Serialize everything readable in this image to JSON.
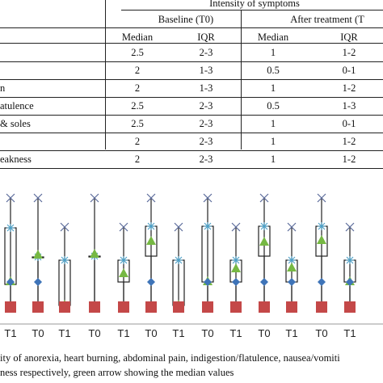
{
  "table": {
    "title": "Intensity of symptoms",
    "groups": [
      "Baseline (T0)",
      "After treatment (T"
    ],
    "subheaders": [
      "Median",
      "IQR",
      "Median",
      "IQR"
    ],
    "rows": [
      {
        "label": "",
        "values": [
          "2.5",
          "2-3",
          "1",
          "1-2"
        ]
      },
      {
        "label": "",
        "values": [
          "2",
          "1-3",
          "0.5",
          "0-1"
        ]
      },
      {
        "label": "n",
        "values": [
          "2",
          "1-3",
          "1",
          "1-2"
        ]
      },
      {
        "label": "atulence",
        "values": [
          "2.5",
          "2-3",
          "0.5",
          "1-3"
        ]
      },
      {
        "label": "& soles",
        "values": [
          "2.5",
          "2-3",
          "1",
          "0-1"
        ]
      },
      {
        "label": "",
        "values": [
          "2",
          "2-3",
          "1",
          "1-2"
        ]
      },
      {
        "label": "eakness",
        "values": [
          "2",
          "2-3",
          "1",
          "1-2"
        ]
      }
    ]
  },
  "chart_data": {
    "type": "box",
    "categories": [
      "T1",
      "T0",
      "T1",
      "T0",
      "T1",
      "T0",
      "T1",
      "T0",
      "T1",
      "T0",
      "T1",
      "T0",
      "T1"
    ],
    "colors": {
      "box": "#000000",
      "max": "#5a6a9a",
      "q3": "#4aa0c8",
      "median": "#76b843",
      "q1": "#3f74b8",
      "min": "#c44848"
    }
  },
  "caption": {
    "line1": "ity of anorexia, heart burning, abdominal pain, indigestion/flatulence, nausea/vomiti",
    "line2": "ness respectively, green arrow showing the median values"
  }
}
